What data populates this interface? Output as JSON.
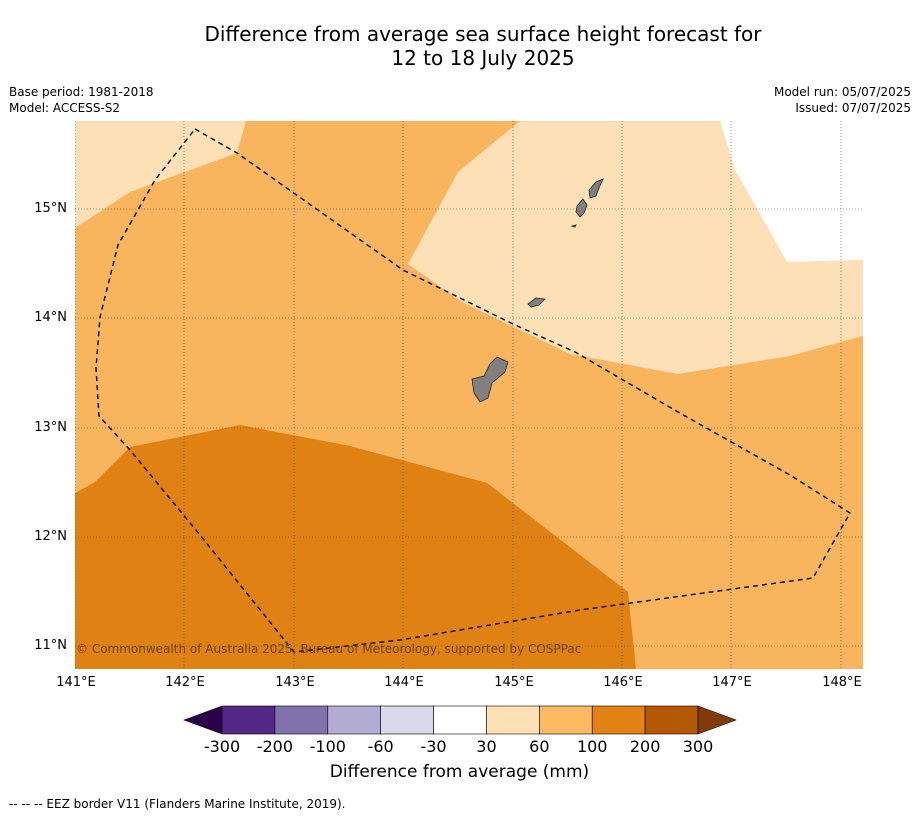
{
  "title_line1": "Difference from average sea surface height forecast for",
  "title_line2": "12 to 18 July 2025",
  "meta_left": {
    "base_period": "Base period: 1981-2018",
    "model": "Model: ACCESS-S2"
  },
  "meta_right": {
    "model_run": "Model run: 05/07/2025",
    "issued": "Issued: 07/07/2025"
  },
  "map": {
    "lat_labels": [
      "15°N",
      "14°N",
      "13°N",
      "12°N",
      "11°N"
    ],
    "lon_labels": [
      "141°E",
      "142°E",
      "143°E",
      "144°E",
      "145°E",
      "146°E",
      "147°E",
      "148°E"
    ],
    "copyright": "© Commonwealth of Australia 2025, Bureau of Meteorology, supported by COSPPac",
    "region_colors": {
      "light": "#fde0b5",
      "mid": "#f9b55e",
      "dark": "#e08213",
      "land": "#808080"
    }
  },
  "colorbar": {
    "title": "Difference from average (mm)",
    "tick_labels": [
      "-300",
      "-200",
      "-100",
      "-60",
      "-30",
      "30",
      "60",
      "100",
      "200",
      "300"
    ],
    "colors": [
      "#2d004b",
      "#542788",
      "#8073ac",
      "#b2abd2",
      "#d8daeb",
      "#ffffff",
      "#fee0b6",
      "#fdb863",
      "#e08214",
      "#b35806",
      "#7f3b08"
    ]
  },
  "footer": "--  --  -- EEZ border V11 (Flanders Marine Institute, 2019)."
}
